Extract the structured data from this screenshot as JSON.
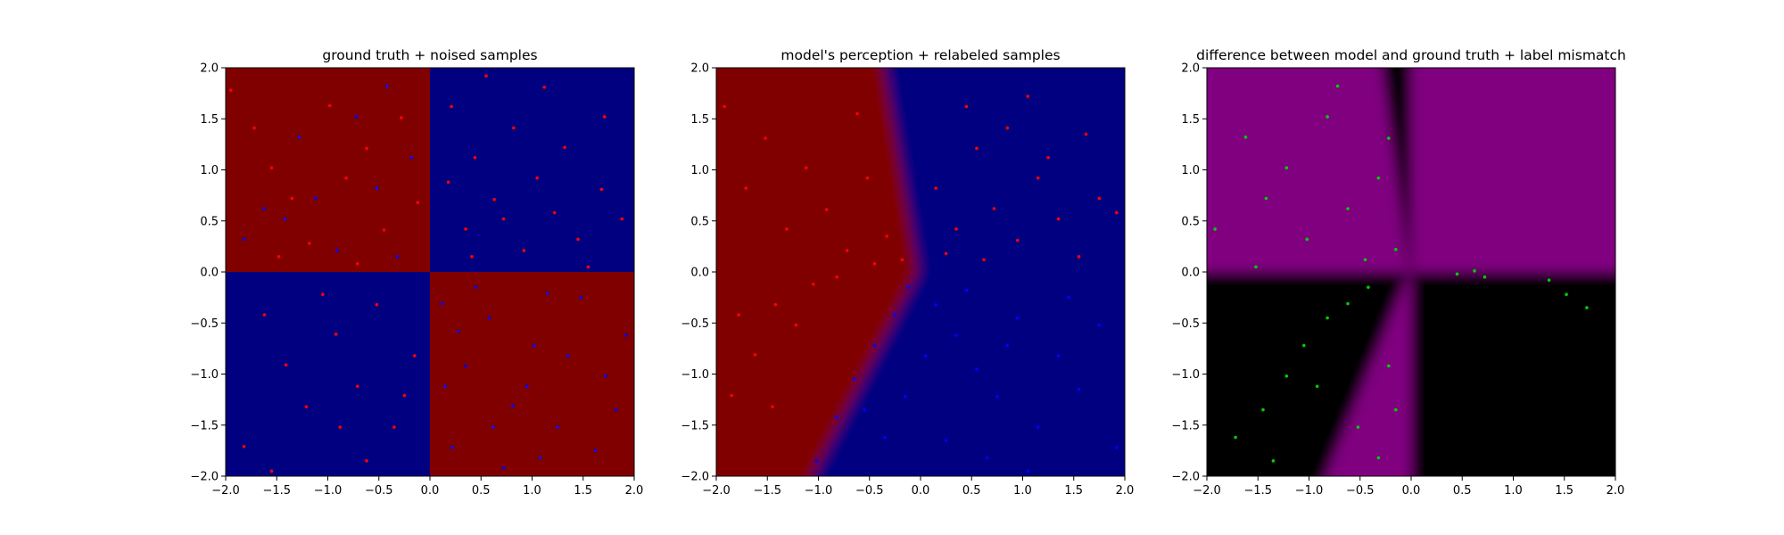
{
  "figure": {
    "background": "#ffffff"
  },
  "chart_data": [
    {
      "type": "heatmap",
      "title": "ground truth + noised samples",
      "xlabel": "",
      "ylabel": "",
      "xlim": [
        -2.0,
        2.0
      ],
      "ylim": [
        -2.0,
        2.0
      ],
      "xticks": [
        "−2.0",
        "−1.5",
        "−1.0",
        "−0.5",
        "0.0",
        "0.5",
        "1.0",
        "1.5",
        "2.0"
      ],
      "yticks": [
        "−2.0",
        "−1.5",
        "−1.0",
        "−0.5",
        "0.0",
        "0.5",
        "1.0",
        "1.5",
        "2.0"
      ],
      "grid": false,
      "background": {
        "kind": "quadrants",
        "regions": [
          {
            "x": [
              -2.0,
              0.0
            ],
            "y": [
              0.0,
              2.0
            ],
            "color": "#800000"
          },
          {
            "x": [
              0.0,
              2.0
            ],
            "y": [
              0.0,
              2.0
            ],
            "color": "#000080"
          },
          {
            "x": [
              -2.0,
              0.0
            ],
            "y": [
              -2.0,
              0.0
            ],
            "color": "#000080"
          },
          {
            "x": [
              0.0,
              2.0
            ],
            "y": [
              -2.0,
              0.0
            ],
            "color": "#800000"
          }
        ]
      },
      "scatter": {
        "series": [
          {
            "color": "#ff0000",
            "points": [
              [
                -1.95,
                1.78
              ],
              [
                -1.72,
                1.41
              ],
              [
                -1.55,
                1.02
              ],
              [
                -1.35,
                0.72
              ],
              [
                -1.18,
                0.28
              ],
              [
                -0.98,
                1.63
              ],
              [
                -0.82,
                0.92
              ],
              [
                -0.62,
                1.21
              ],
              [
                -0.45,
                0.41
              ],
              [
                -0.28,
                1.51
              ],
              [
                -0.12,
                0.68
              ],
              [
                -1.48,
                0.15
              ],
              [
                -0.71,
                0.08
              ],
              [
                0.21,
                1.62
              ],
              [
                0.44,
                1.12
              ],
              [
                0.63,
                0.71
              ],
              [
                0.82,
                1.41
              ],
              [
                1.05,
                0.92
              ],
              [
                1.22,
                0.58
              ],
              [
                1.45,
                0.32
              ],
              [
                1.68,
                0.81
              ],
              [
                1.88,
                0.52
              ],
              [
                0.35,
                0.42
              ],
              [
                0.92,
                0.21
              ],
              [
                1.32,
                1.22
              ],
              [
                0.55,
                1.92
              ],
              [
                1.12,
                1.81
              ],
              [
                1.71,
                1.52
              ],
              [
                0.18,
                0.88
              ],
              [
                0.72,
                0.52
              ],
              [
                1.55,
                0.05
              ],
              [
                0.41,
                0.15
              ],
              [
                -1.62,
                -0.42
              ],
              [
                -1.41,
                -0.91
              ],
              [
                -1.21,
                -1.32
              ],
              [
                -0.92,
                -0.61
              ],
              [
                -0.71,
                -1.12
              ],
              [
                -0.52,
                -0.32
              ],
              [
                -0.35,
                -1.52
              ],
              [
                -0.15,
                -0.82
              ],
              [
                -1.82,
                -1.71
              ],
              [
                -0.62,
                -1.85
              ],
              [
                -1.05,
                -0.22
              ],
              [
                -0.25,
                -1.21
              ],
              [
                -1.55,
                -1.95
              ],
              [
                -0.88,
                -1.52
              ]
            ]
          },
          {
            "color": "#0000ff",
            "points": [
              [
                -1.82,
                0.32
              ],
              [
                -1.42,
                0.52
              ],
              [
                -1.12,
                0.72
              ],
              [
                -0.91,
                0.21
              ],
              [
                -0.72,
                1.52
              ],
              [
                -0.52,
                0.82
              ],
              [
                -0.32,
                0.15
              ],
              [
                -0.18,
                1.12
              ],
              [
                -1.28,
                1.32
              ],
              [
                -0.42,
                1.82
              ],
              [
                -1.62,
                0.62
              ],
              [
                0.12,
                -0.31
              ],
              [
                0.35,
                -0.92
              ],
              [
                0.58,
                -0.45
              ],
              [
                0.81,
                -1.31
              ],
              [
                1.02,
                -0.72
              ],
              [
                1.25,
                -1.52
              ],
              [
                1.48,
                -0.25
              ],
              [
                1.72,
                -1.02
              ],
              [
                1.92,
                -0.62
              ],
              [
                0.22,
                -1.72
              ],
              [
                0.72,
                -1.92
              ],
              [
                1.15,
                -0.21
              ],
              [
                1.62,
                -1.75
              ],
              [
                0.45,
                -0.15
              ],
              [
                0.95,
                -1.12
              ],
              [
                1.35,
                -0.82
              ],
              [
                0.62,
                -1.52
              ],
              [
                1.82,
                -1.35
              ],
              [
                0.28,
                -0.58
              ],
              [
                1.08,
                -1.82
              ],
              [
                0.15,
                -1.12
              ]
            ]
          }
        ]
      }
    },
    {
      "type": "heatmap",
      "title": "model's perception + relabeled samples",
      "xlabel": "",
      "ylabel": "",
      "xlim": [
        -2.0,
        2.0
      ],
      "ylim": [
        -2.0,
        2.0
      ],
      "xticks": [
        "−2.0",
        "−1.5",
        "−1.0",
        "−0.5",
        "0.0",
        "0.5",
        "1.0",
        "1.5",
        "2.0"
      ],
      "yticks": [
        "−2.0",
        "−1.5",
        "−1.0",
        "−0.5",
        "0.0",
        "0.5",
        "1.0",
        "1.5",
        "2.0"
      ],
      "grid": false,
      "background": {
        "kind": "decision_boundary",
        "boundary": [
          [
            -1.05,
            -2.0
          ],
          [
            -0.02,
            0.0
          ],
          [
            -0.35,
            2.0
          ]
        ],
        "left_color": "#800000",
        "right_color": "#000080"
      },
      "scatter": {
        "series": [
          {
            "color": "#ff0000",
            "points": [
              [
                -1.92,
                1.62
              ],
              [
                -1.71,
                0.82
              ],
              [
                -1.52,
                1.31
              ],
              [
                -1.31,
                0.42
              ],
              [
                -1.12,
                1.02
              ],
              [
                -0.92,
                0.61
              ],
              [
                -0.72,
                0.21
              ],
              [
                -0.52,
                0.92
              ],
              [
                -0.33,
                0.35
              ],
              [
                -0.18,
                0.12
              ],
              [
                -0.62,
                1.55
              ],
              [
                -1.42,
                -0.32
              ],
              [
                -1.62,
                -0.81
              ],
              [
                -1.22,
                -0.52
              ],
              [
                -1.05,
                -0.12
              ],
              [
                -0.82,
                -0.05
              ],
              [
                -1.85,
                -1.21
              ],
              [
                -1.45,
                -1.32
              ],
              [
                -1.78,
                -0.42
              ],
              [
                -0.45,
                0.08
              ],
              [
                0.15,
                0.82
              ],
              [
                0.35,
                0.42
              ],
              [
                0.55,
                1.21
              ],
              [
                0.72,
                0.62
              ],
              [
                0.95,
                0.31
              ],
              [
                1.15,
                0.92
              ],
              [
                1.35,
                0.52
              ],
              [
                1.55,
                0.15
              ],
              [
                1.75,
                0.72
              ],
              [
                1.92,
                0.58
              ],
              [
                0.45,
                1.62
              ],
              [
                0.85,
                1.41
              ],
              [
                1.25,
                1.12
              ],
              [
                0.25,
                0.18
              ],
              [
                1.05,
                1.72
              ],
              [
                1.62,
                1.35
              ],
              [
                0.62,
                0.12
              ]
            ]
          },
          {
            "color": "#0000ff",
            "points": [
              [
                -1.02,
                -1.85
              ],
              [
                -0.82,
                -1.42
              ],
              [
                -0.65,
                -1.05
              ],
              [
                -0.45,
                -0.72
              ],
              [
                -0.25,
                -0.42
              ],
              [
                -0.12,
                -0.15
              ],
              [
                0.15,
                -0.32
              ],
              [
                0.35,
                -0.62
              ],
              [
                0.55,
                -0.95
              ],
              [
                0.75,
                -1.22
              ],
              [
                0.95,
                -0.45
              ],
              [
                1.15,
                -1.52
              ],
              [
                1.35,
                -0.82
              ],
              [
                1.55,
                -1.15
              ],
              [
                1.75,
                -0.52
              ],
              [
                1.92,
                -1.72
              ],
              [
                0.25,
                -1.65
              ],
              [
                0.65,
                -1.82
              ],
              [
                1.05,
                -1.95
              ],
              [
                -0.35,
                -1.62
              ],
              [
                -0.55,
                -1.35
              ],
              [
                0.45,
                -0.18
              ],
              [
                0.85,
                -0.72
              ],
              [
                1.45,
                -0.25
              ],
              [
                0.05,
                -0.82
              ],
              [
                -0.15,
                -1.22
              ]
            ]
          }
        ]
      }
    },
    {
      "type": "heatmap",
      "title": "difference between model and ground truth + label mismatch",
      "xlabel": "",
      "ylabel": "",
      "xlim": [
        -2.0,
        2.0
      ],
      "ylim": [
        -2.0,
        2.0
      ],
      "xticks": [
        "−2.0",
        "−1.5",
        "−1.0",
        "−0.5",
        "0.0",
        "0.5",
        "1.0",
        "1.5",
        "2.0"
      ],
      "yticks": [
        "−2.0",
        "−1.5",
        "−1.0",
        "−0.5",
        "0.0",
        "0.5",
        "1.0",
        "1.5",
        "2.0"
      ],
      "grid": false,
      "background": {
        "kind": "xor_difference",
        "boundary": [
          [
            -1.05,
            -2.0
          ],
          [
            -0.02,
            0.0
          ],
          [
            -0.35,
            2.0
          ]
        ],
        "mismatch_color": "#800080",
        "match_color": "#000000"
      },
      "scatter": {
        "series": [
          {
            "color": "#00cc00",
            "points": [
              [
                -1.92,
                0.42
              ],
              [
                -1.62,
                1.32
              ],
              [
                -1.42,
                0.72
              ],
              [
                -1.22,
                1.02
              ],
              [
                -1.02,
                0.32
              ],
              [
                -0.82,
                1.52
              ],
              [
                -0.62,
                0.62
              ],
              [
                -0.45,
                0.12
              ],
              [
                -0.32,
                0.92
              ],
              [
                -0.15,
                0.22
              ],
              [
                -0.72,
                1.82
              ],
              [
                -1.52,
                0.05
              ],
              [
                -0.22,
                1.31
              ],
              [
                -1.72,
                -1.62
              ],
              [
                -1.45,
                -1.35
              ],
              [
                -1.22,
                -1.02
              ],
              [
                -1.05,
                -0.72
              ],
              [
                -0.82,
                -0.45
              ],
              [
                -0.62,
                -0.31
              ],
              [
                -0.42,
                -0.15
              ],
              [
                -1.35,
                -1.85
              ],
              [
                -0.92,
                -1.12
              ],
              [
                -0.52,
                -1.52
              ],
              [
                -0.32,
                -1.82
              ],
              [
                -0.15,
                -1.35
              ],
              [
                -0.22,
                -0.92
              ],
              [
                0.45,
                -0.02
              ],
              [
                0.72,
                -0.05
              ],
              [
                1.35,
                -0.08
              ],
              [
                1.52,
                -0.22
              ],
              [
                1.72,
                -0.35
              ],
              [
                0.62,
                0.01
              ]
            ]
          }
        ]
      }
    }
  ]
}
